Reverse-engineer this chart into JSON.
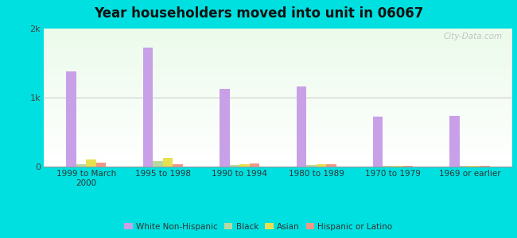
{
  "title": "Year householders moved into unit in 06067",
  "categories": [
    "1999 to March\n2000",
    "1995 to 1998",
    "1990 to 1994",
    "1980 to 1989",
    "1970 to 1979",
    "1969 or earlier"
  ],
  "series": {
    "White Non-Hispanic": [
      1380,
      1720,
      1130,
      1160,
      720,
      730
    ],
    "Black": [
      40,
      80,
      20,
      20,
      15,
      10
    ],
    "Asian": [
      100,
      130,
      40,
      30,
      8,
      8
    ],
    "Hispanic or Latino": [
      55,
      35,
      50,
      35,
      8,
      8
    ]
  },
  "colors": {
    "White Non-Hispanic": "#c8a0e8",
    "Black": "#b8d8a0",
    "Asian": "#e8e050",
    "Hispanic or Latino": "#f09888"
  },
  "ylim": [
    0,
    2000
  ],
  "yticks": [
    0,
    1000,
    2000
  ],
  "ytick_labels": [
    "0",
    "1k",
    "2k"
  ],
  "background_outer": "#00e0e0",
  "watermark": "City-Data.com",
  "bar_width": 0.13,
  "legend_labels": [
    "White Non-Hispanic",
    "Black",
    "Asian",
    "Hispanic or Latino"
  ]
}
